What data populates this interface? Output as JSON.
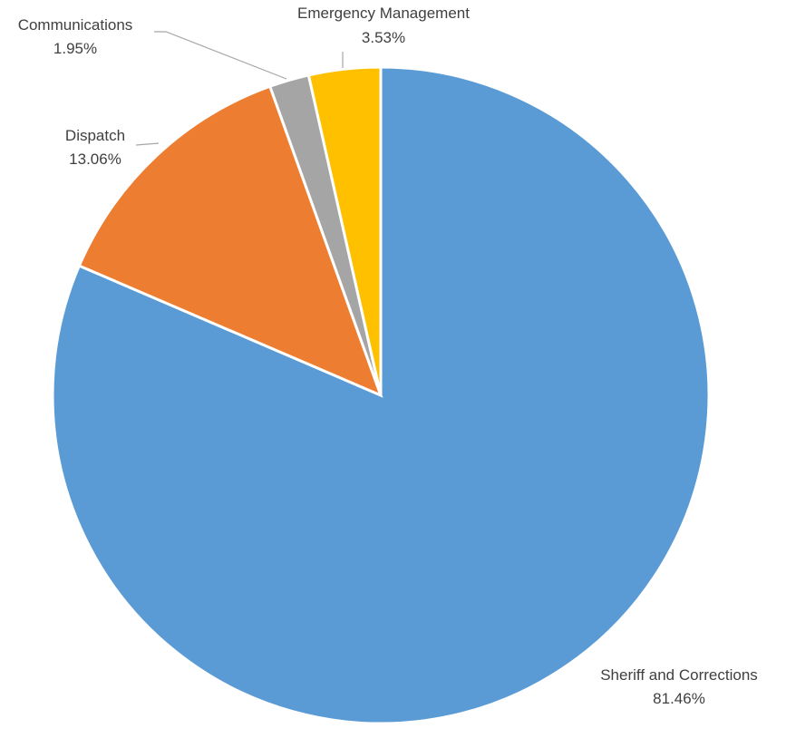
{
  "chart_data": {
    "type": "pie",
    "title": "",
    "start_angle_deg": 0,
    "direction": "clockwise",
    "slices": [
      {
        "name": "Sheriff and Corrections",
        "value": 81.46,
        "value_label": "81.46%",
        "color": "#5b9bd5"
      },
      {
        "name": "Dispatch",
        "value": 13.06,
        "value_label": "13.06%",
        "color": "#ed7d31"
      },
      {
        "name": "Communications",
        "value": 1.95,
        "value_label": "1.95%",
        "color": "#a5a5a5"
      },
      {
        "name": "Emergency Management",
        "value": 3.53,
        "value_label": "3.53%",
        "color": "#ffc000"
      }
    ],
    "legend": "none",
    "data_labels": "outside-with-leader-lines"
  }
}
